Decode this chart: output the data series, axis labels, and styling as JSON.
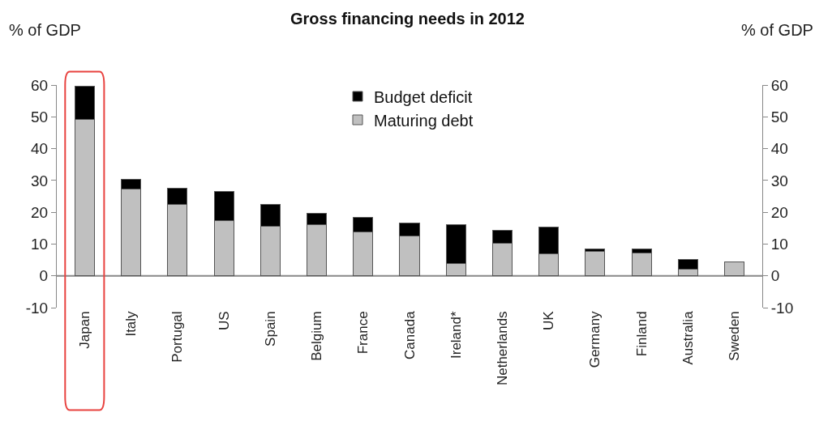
{
  "chart_data": {
    "type": "bar",
    "stacked": true,
    "title": "Gross financing needs in 2012",
    "ylabel": "% of GDP",
    "y2label": "% of GDP",
    "categories": [
      "Japan",
      "Italy",
      "Portugal",
      "US",
      "Spain",
      "Belgium",
      "France",
      "Canada",
      "Ireland*",
      "Netherlands",
      "UK",
      "Germany",
      "Finland",
      "Australia",
      "Sweden"
    ],
    "series": [
      {
        "name": "Maturing debt",
        "color": "#c0c0c0",
        "values": [
          49.3,
          27.3,
          22.4,
          17.4,
          15.5,
          16.1,
          13.7,
          12.5,
          4.0,
          10.3,
          7.0,
          7.8,
          7.3,
          2.2,
          4.5
        ]
      },
      {
        "name": "Budget deficit",
        "color": "#000000",
        "values": [
          10.2,
          3.1,
          5.1,
          9.1,
          7.0,
          3.5,
          4.6,
          4.1,
          12.0,
          4.0,
          8.3,
          0.7,
          1.2,
          2.9,
          null
        ]
      }
    ],
    "ylim": [
      -10,
      60
    ],
    "yticks": [
      -10,
      0,
      10,
      20,
      30,
      40,
      50,
      60
    ],
    "y2lim": [
      -10,
      60
    ],
    "y2ticks": [
      -10,
      0,
      10,
      20,
      30,
      40,
      50,
      60
    ],
    "legend": "top",
    "grid": false
  }
}
